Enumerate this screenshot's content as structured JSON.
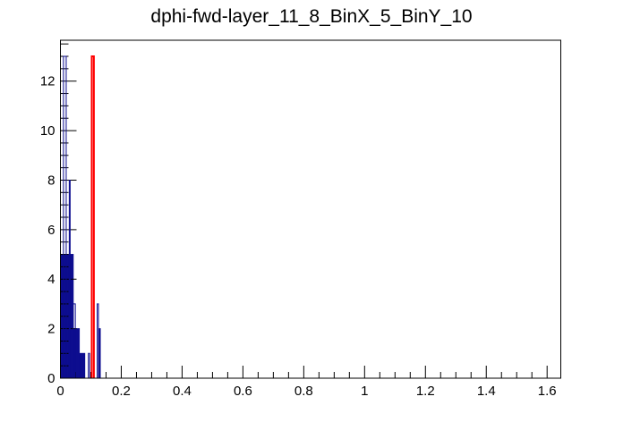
{
  "title": "dphi-fwd-layer_11_8_BinX_5_BinY_10",
  "colors": {
    "background": "#ffffff",
    "axis": "#000000",
    "histogram_blue": "#0d0d8f",
    "histogram_red": "#ff0000"
  },
  "chart_data": {
    "type": "bar",
    "title": "dphi-fwd-layer_11_8_BinX_5_BinY_10",
    "xlabel": "",
    "ylabel": "",
    "xlim": [
      0,
      1.645
    ],
    "ylim": [
      0,
      13.65
    ],
    "grid": false,
    "legend": false,
    "x_major_ticks": [
      0,
      0.2,
      0.4,
      0.6,
      0.8,
      1,
      1.2,
      1.4,
      1.6
    ],
    "x_tick_labels": [
      "0",
      "0.2",
      "0.4",
      "0.6",
      "0.8",
      "1",
      "1.2",
      "1.4",
      "1.6"
    ],
    "x_minor_step": 0.05,
    "y_major_ticks": [
      0,
      2,
      4,
      6,
      8,
      10,
      12
    ],
    "y_tick_labels": [
      "0",
      "2",
      "4",
      "6",
      "8",
      "10",
      "12"
    ],
    "y_minor_step": 0.5,
    "series": [
      {
        "name": "filled-histogram",
        "style": "filled",
        "color": "#0d0d8f",
        "bins": [
          {
            "x1": 0.0,
            "x2": 0.042,
            "y": 5
          },
          {
            "x1": 0.042,
            "x2": 0.062,
            "y": 2
          },
          {
            "x1": 0.062,
            "x2": 0.08,
            "y": 1
          }
        ]
      },
      {
        "name": "outline-histogram",
        "style": "line",
        "color": "#0d0d8f",
        "line_width": 1,
        "bins": [
          {
            "x1": 0.01,
            "x2": 0.019,
            "y": 13
          },
          {
            "x1": 0.029,
            "x2": 0.032,
            "y": 8
          },
          {
            "x1": 0.042,
            "x2": 0.049,
            "y": 3
          },
          {
            "x1": 0.092,
            "x2": 0.096,
            "y": 1
          },
          {
            "x1": 0.121,
            "x2": 0.125,
            "y": 3
          },
          {
            "x1": 0.128,
            "x2": 0.131,
            "y": 2
          }
        ]
      },
      {
        "name": "red-histogram",
        "style": "line",
        "color": "#ff0000",
        "line_width": 2,
        "bins": [
          {
            "x1": 0.103,
            "x2": 0.11,
            "y": 13
          }
        ]
      }
    ]
  }
}
